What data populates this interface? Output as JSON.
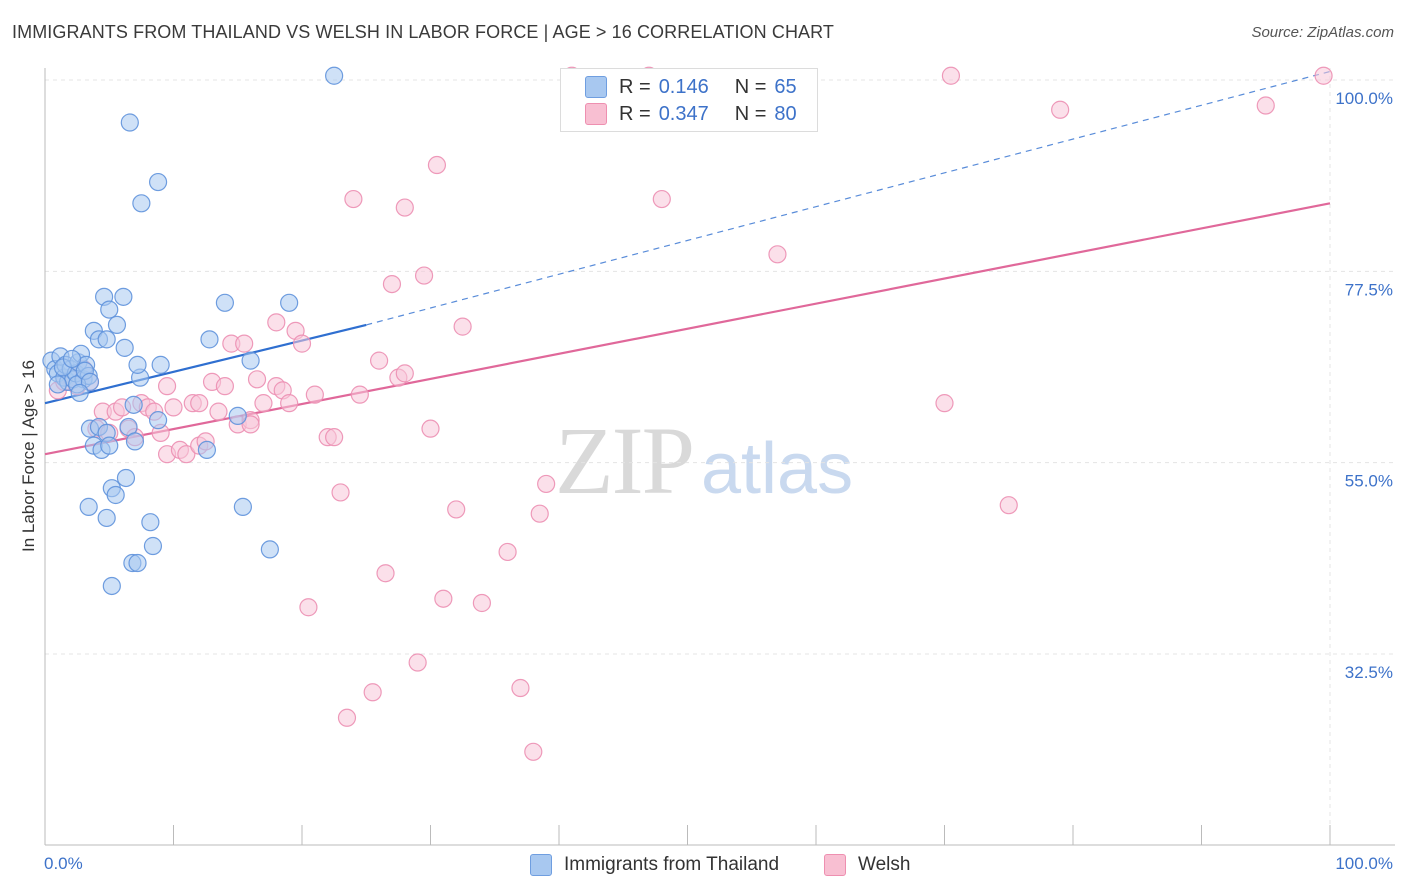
{
  "header": {
    "title": "IMMIGRANTS FROM THAILAND VS WELSH IN LABOR FORCE | AGE > 16 CORRELATION CHART",
    "source": "Source: ZipAtlas.com"
  },
  "legend": {
    "r_label": "R =",
    "n_label": "N =",
    "series": [
      {
        "r": "0.146",
        "n": "65",
        "color": "#a8c8f0",
        "border": "#6f9ee0"
      },
      {
        "r": "0.347",
        "n": "80",
        "color": "#f8bfd2",
        "border": "#ee8fb0"
      }
    ]
  },
  "bottom_legend": {
    "items": [
      {
        "label": "Immigrants from Thailand"
      },
      {
        "label": "Welsh"
      }
    ]
  },
  "watermark": {
    "zip": "ZIP",
    "atlas": "atlas"
  },
  "colors": {
    "thailand_fill": "#a8c8f0",
    "thailand_stroke": "#5f92dc",
    "thailand_line": "#2f6fd0",
    "welsh_fill": "#f8c6d8",
    "welsh_stroke": "#ec8fb2",
    "welsh_line": "#e0689a",
    "tick_text": "#3d72c9",
    "grid": "#e4e4e4"
  },
  "chart_data": {
    "type": "scatter",
    "title": "IMMIGRANTS FROM THAILAND VS WELSH IN LABOR FORCE | AGE > 16 CORRELATION CHART",
    "xlabel": "",
    "ylabel": "In Labor Force | Age > 16",
    "xlim": [
      0,
      100
    ],
    "ylim": [
      15,
      102
    ],
    "x_tick_labels": [
      "0.0%",
      "100.0%"
    ],
    "y_ticks": [
      32.5,
      55.0,
      77.5,
      100.0
    ],
    "y_tick_labels": [
      "32.5%",
      "55.0%",
      "77.5%",
      "100.0%"
    ],
    "grid": true,
    "legend_position": "top-center",
    "series": [
      {
        "name": "Immigrants from Thailand",
        "r": 0.146,
        "n": 65,
        "trend": {
          "x0": 0,
          "y0": 62.0,
          "x1": 25,
          "y1": 71.2,
          "dashed_to_x": 100,
          "dashed_to_y": 101.0
        },
        "points": [
          [
            0.5,
            67.0
          ],
          [
            0.8,
            66.0
          ],
          [
            1.0,
            65.5
          ],
          [
            1.2,
            67.5
          ],
          [
            1.5,
            65.0
          ],
          [
            1.6,
            66.5
          ],
          [
            1.8,
            64.5
          ],
          [
            2.0,
            66.0
          ],
          [
            2.2,
            64.8
          ],
          [
            2.4,
            65.5
          ],
          [
            2.6,
            66.8
          ],
          [
            2.8,
            67.8
          ],
          [
            3.0,
            64.8
          ],
          [
            3.2,
            66.5
          ],
          [
            3.4,
            65.2
          ],
          [
            1.0,
            64.2
          ],
          [
            1.4,
            66.2
          ],
          [
            2.5,
            64.2
          ],
          [
            3.1,
            65.8
          ],
          [
            2.1,
            67.2
          ],
          [
            3.5,
            64.5
          ],
          [
            2.7,
            63.2
          ],
          [
            3.8,
            70.5
          ],
          [
            4.2,
            69.5
          ],
          [
            4.6,
            74.5
          ],
          [
            5.0,
            73.0
          ],
          [
            5.6,
            71.2
          ],
          [
            4.8,
            69.5
          ],
          [
            6.1,
            74.5
          ],
          [
            6.2,
            68.5
          ],
          [
            6.5,
            59.2
          ],
          [
            6.9,
            61.8
          ],
          [
            7.0,
            57.5
          ],
          [
            7.4,
            65.0
          ],
          [
            7.2,
            66.5
          ],
          [
            3.5,
            59.0
          ],
          [
            3.8,
            57.0
          ],
          [
            4.2,
            59.2
          ],
          [
            4.4,
            56.5
          ],
          [
            4.8,
            58.5
          ],
          [
            5.0,
            57.0
          ],
          [
            5.2,
            52.0
          ],
          [
            5.5,
            51.2
          ],
          [
            3.4,
            49.8
          ],
          [
            4.8,
            48.5
          ],
          [
            6.3,
            53.2
          ],
          [
            6.8,
            43.2
          ],
          [
            7.2,
            43.2
          ],
          [
            5.2,
            40.5
          ],
          [
            8.2,
            48.0
          ],
          [
            8.4,
            45.2
          ],
          [
            8.8,
            60.0
          ],
          [
            12.6,
            56.5
          ],
          [
            12.8,
            69.5
          ],
          [
            14.0,
            73.8
          ],
          [
            15.0,
            60.5
          ],
          [
            15.4,
            49.8
          ],
          [
            16.0,
            67.0
          ],
          [
            17.5,
            44.8
          ],
          [
            19.0,
            73.8
          ],
          [
            22.5,
            100.5
          ],
          [
            6.6,
            95.0
          ],
          [
            8.8,
            88.0
          ],
          [
            7.5,
            85.5
          ],
          [
            9.0,
            66.5
          ]
        ]
      },
      {
        "name": "Welsh",
        "r": 0.347,
        "n": 80,
        "trend": {
          "x0": 0,
          "y0": 56.0,
          "x1": 100,
          "y1": 85.5
        },
        "points": [
          [
            1.0,
            63.5
          ],
          [
            1.5,
            64.5
          ],
          [
            2.0,
            65.0
          ],
          [
            2.5,
            64.0
          ],
          [
            3.0,
            66.0
          ],
          [
            3.5,
            64.5
          ],
          [
            4.0,
            59.0
          ],
          [
            4.5,
            61.0
          ],
          [
            5.0,
            58.5
          ],
          [
            5.5,
            61.0
          ],
          [
            6.0,
            61.5
          ],
          [
            6.5,
            59.0
          ],
          [
            7.0,
            58.0
          ],
          [
            7.5,
            62.0
          ],
          [
            8.0,
            61.5
          ],
          [
            8.5,
            61.0
          ],
          [
            9.0,
            58.5
          ],
          [
            9.5,
            56.0
          ],
          [
            10.0,
            61.5
          ],
          [
            10.5,
            56.5
          ],
          [
            11.0,
            56.0
          ],
          [
            11.5,
            62.0
          ],
          [
            12.0,
            57.0
          ],
          [
            12.5,
            57.5
          ],
          [
            13.0,
            64.5
          ],
          [
            13.5,
            61.0
          ],
          [
            14.0,
            64.0
          ],
          [
            14.5,
            69.0
          ],
          [
            15.0,
            59.5
          ],
          [
            15.5,
            69.0
          ],
          [
            16.0,
            60.0
          ],
          [
            16.5,
            64.8
          ],
          [
            17.0,
            62.0
          ],
          [
            18.0,
            64.0
          ],
          [
            18.5,
            63.5
          ],
          [
            19.0,
            62.0
          ],
          [
            19.5,
            70.5
          ],
          [
            20.0,
            69.0
          ],
          [
            20.5,
            38.0
          ],
          [
            21.0,
            63.0
          ],
          [
            22.0,
            58.0
          ],
          [
            22.5,
            58.0
          ],
          [
            23.0,
            51.5
          ],
          [
            23.5,
            25.0
          ],
          [
            24.0,
            86.0
          ],
          [
            24.5,
            63.0
          ],
          [
            25.5,
            28.0
          ],
          [
            26.5,
            42.0
          ],
          [
            27.0,
            76.0
          ],
          [
            27.5,
            65.0
          ],
          [
            28.0,
            85.0
          ],
          [
            29.0,
            31.5
          ],
          [
            29.5,
            77.0
          ],
          [
            30.0,
            59.0
          ],
          [
            30.5,
            90.0
          ],
          [
            31.0,
            39.0
          ],
          [
            32.0,
            49.5
          ],
          [
            32.5,
            71.0
          ],
          [
            34.0,
            38.5
          ],
          [
            36.0,
            44.5
          ],
          [
            37.0,
            28.5
          ],
          [
            38.0,
            21.0
          ],
          [
            38.5,
            49.0
          ],
          [
            39.0,
            52.5
          ],
          [
            41.0,
            100.5
          ],
          [
            47.0,
            100.5
          ],
          [
            48.0,
            86.0
          ],
          [
            57.0,
            79.5
          ],
          [
            70.0,
            62.0
          ],
          [
            70.5,
            100.5
          ],
          [
            75.0,
            50.0
          ],
          [
            79.0,
            96.5
          ],
          [
            95.0,
            97.0
          ],
          [
            99.5,
            100.5
          ],
          [
            16.0,
            59.5
          ],
          [
            18.0,
            71.5
          ],
          [
            26.0,
            67.0
          ],
          [
            28.0,
            65.5
          ],
          [
            12.0,
            62.0
          ],
          [
            9.5,
            64.0
          ]
        ]
      }
    ]
  }
}
